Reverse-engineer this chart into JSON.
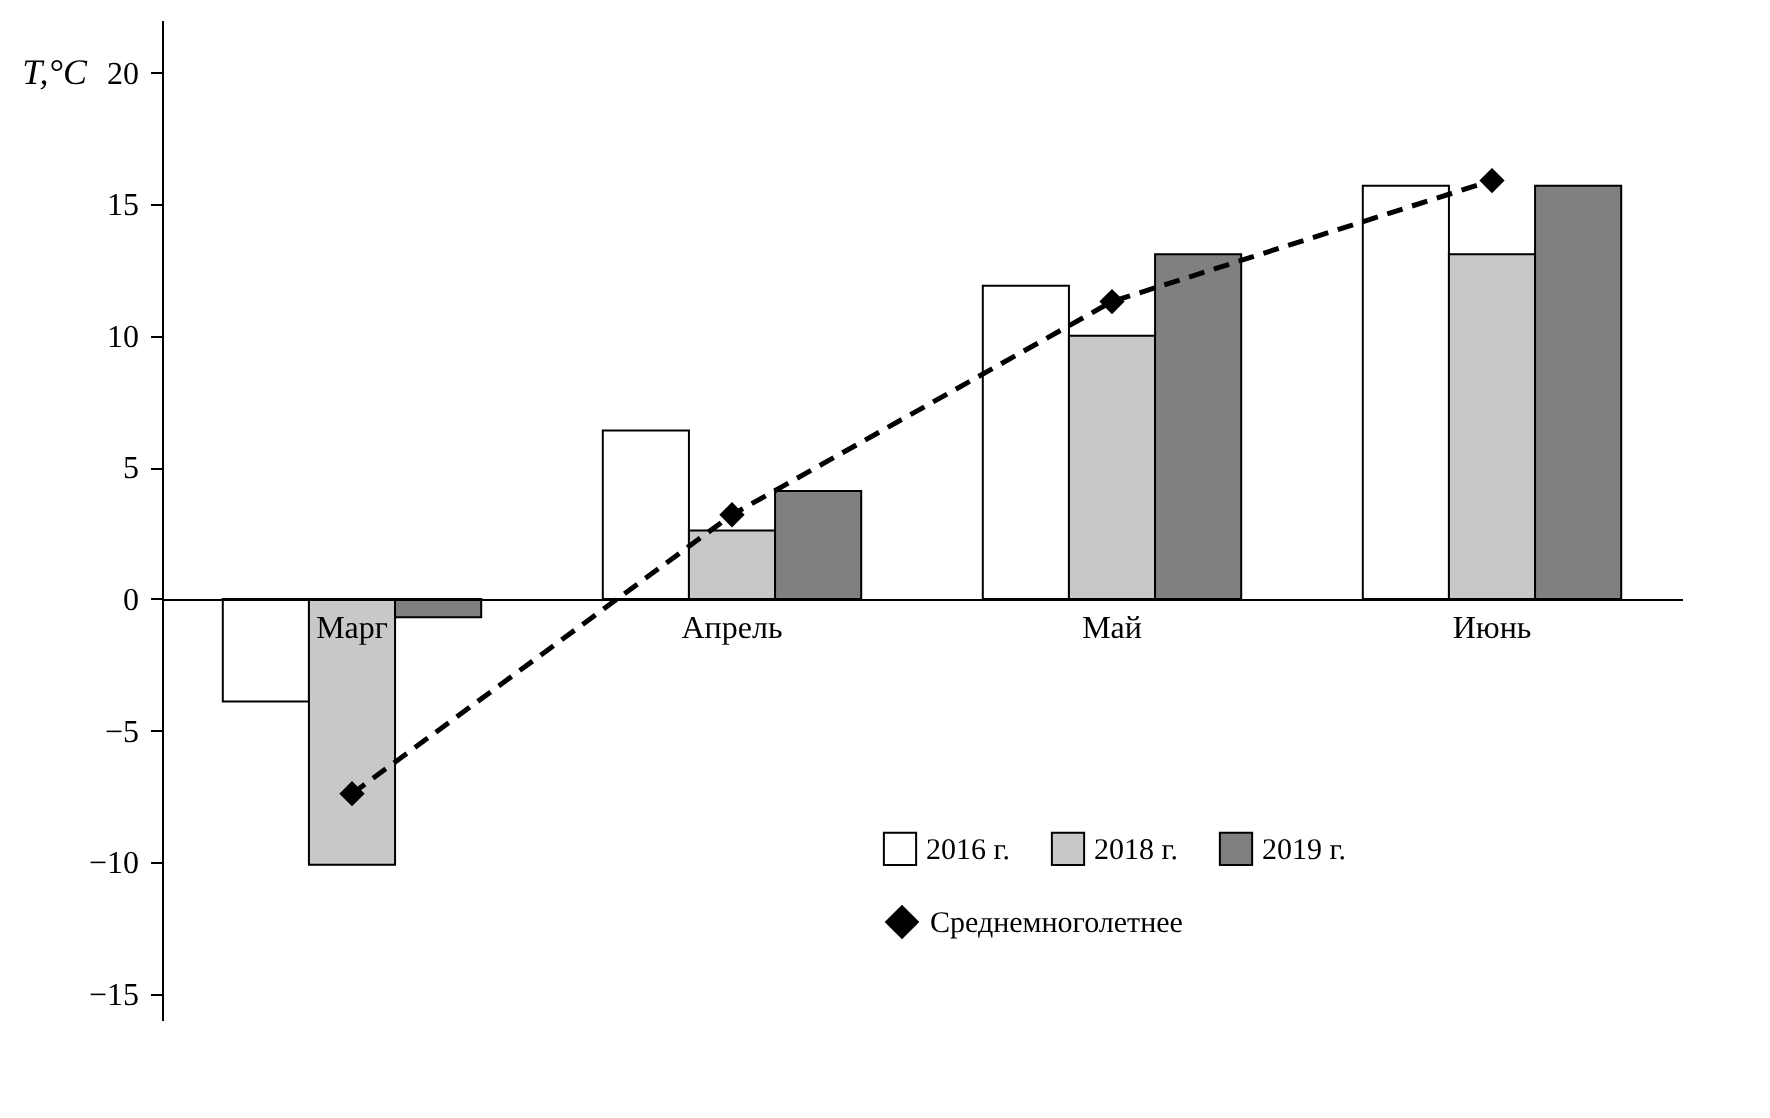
{
  "chart_data": {
    "type": "bar",
    "categories": [
      "Марг",
      "Апрель",
      "Май",
      "Июнь"
    ],
    "ylabel": "T,°C",
    "ylim": [
      -16,
      22
    ],
    "yticks": [
      -15,
      -10,
      -5,
      0,
      5,
      10,
      15,
      20
    ],
    "grid": false,
    "legend": "bottom right",
    "series": [
      {
        "name": "2016 г.",
        "color": "#ffffff",
        "values": [
          -3.9,
          6.4,
          11.9,
          15.7
        ]
      },
      {
        "name": "2018 г.",
        "color": "#c8c8c8",
        "values": [
          -10.1,
          2.6,
          10.0,
          13.1
        ]
      },
      {
        "name": "2019 г.",
        "color": "#808080",
        "values": [
          -0.7,
          4.1,
          13.1,
          15.7
        ]
      },
      {
        "name": "Среднемноголетнее",
        "type": "line",
        "color": "#000000",
        "marker": "diamond",
        "line_style": "dashed",
        "values": [
          -7.4,
          3.2,
          11.3,
          15.9
        ]
      }
    ]
  }
}
